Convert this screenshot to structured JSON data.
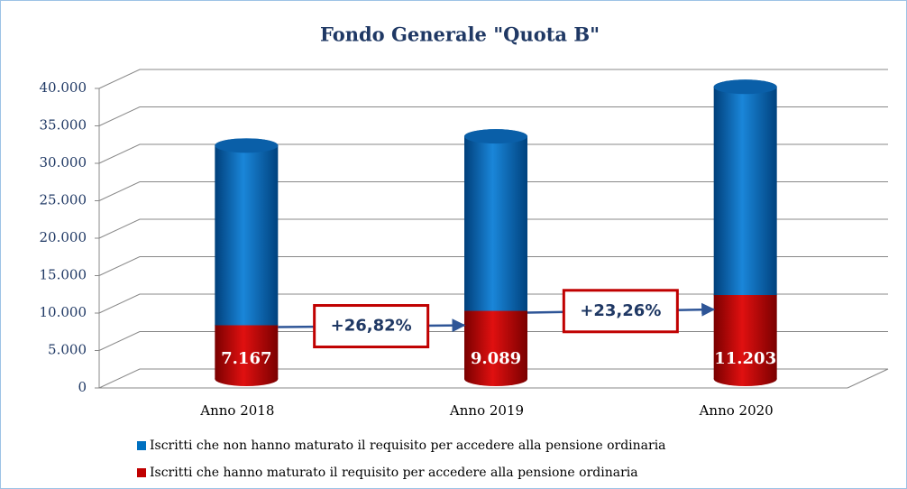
{
  "chart_data": {
    "type": "bar",
    "stacked": true,
    "title": "Fondo Generale \"Quota B\"",
    "categories": [
      "Anno 2018",
      "Anno 2019",
      "Anno 2020"
    ],
    "series": [
      {
        "name": "Iscritti che non hanno maturato il requisito per accedere alla pensione ordinaria",
        "color": "#0070c0",
        "values": [
          24000,
          23300,
          27800
        ]
      },
      {
        "name": "Iscritti che hanno maturato il requisito per accedere alla pensione ordinaria",
        "color": "#c00000",
        "values": [
          7167,
          9089,
          11203
        ],
        "value_labels": [
          "7.167",
          "9.089",
          "11.203"
        ]
      }
    ],
    "annotations": [
      "+26,82%",
      "+23,26%"
    ],
    "ylim": [
      0,
      40000
    ],
    "yticks": [
      0,
      {
        "value": 5000,
        "label": "5.000"
      },
      {
        "value": 10000,
        "label": "10.000"
      },
      {
        "value": 15000,
        "label": "15.000"
      },
      {
        "value": 20000,
        "label": "20.000"
      },
      {
        "value": 25000,
        "label": "25.000"
      },
      {
        "value": 30000,
        "label": "30.000"
      },
      {
        "value": 35000,
        "label": "35.000"
      },
      {
        "value": 40000,
        "label": "40.000"
      }
    ],
    "grid": true,
    "legend": "bottom"
  }
}
